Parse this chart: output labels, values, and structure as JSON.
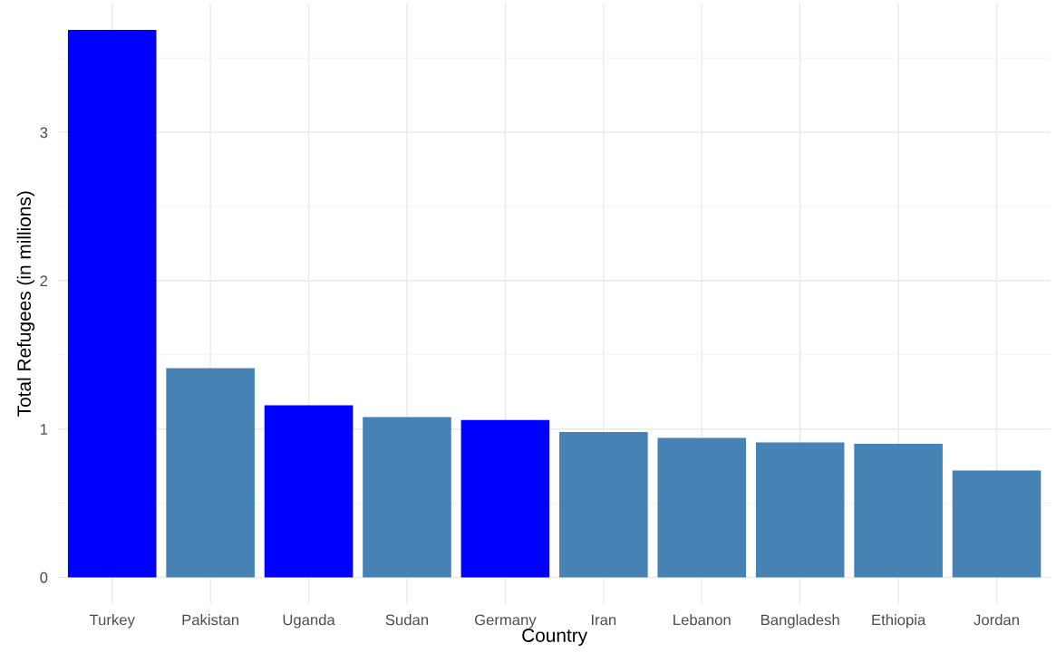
{
  "chart_data": {
    "type": "bar",
    "xlabel": "Country",
    "ylabel": "Total Refugees (in millions)",
    "categories": [
      "Turkey",
      "Pakistan",
      "Uganda",
      "Sudan",
      "Germany",
      "Iran",
      "Lebanon",
      "Bangladesh",
      "Ethiopia",
      "Jordan"
    ],
    "values": [
      3.69,
      1.41,
      1.16,
      1.08,
      1.06,
      0.98,
      0.94,
      0.91,
      0.9,
      0.72
    ],
    "colors": [
      "#0000ff",
      "#4682b4",
      "#0000ff",
      "#4682b4",
      "#0000ff",
      "#4682b4",
      "#4682b4",
      "#4682b4",
      "#4682b4",
      "#4682b4"
    ],
    "ylim": [
      -0.18,
      3.87
    ],
    "yticks": [
      0,
      1,
      2,
      3
    ],
    "grid": true
  }
}
